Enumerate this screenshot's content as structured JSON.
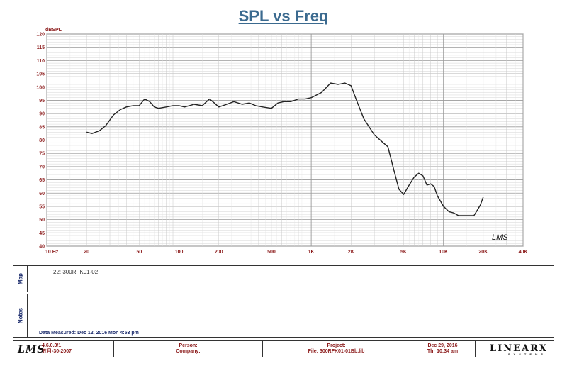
{
  "chart_data": {
    "type": "line",
    "title": "SPL vs Freq",
    "ylabel": "dBSPL",
    "xscale": "log",
    "xlim": [
      10,
      40000
    ],
    "ylim": [
      40,
      120
    ],
    "grid": true,
    "y_ticks": [
      "40",
      "45",
      "50",
      "55",
      "60",
      "65",
      "70",
      "75",
      "80",
      "85",
      "90",
      "95",
      "100",
      "105",
      "110",
      "115",
      "120"
    ],
    "x_ticks": [
      {
        "value": 10,
        "label": "10  Hz"
      },
      {
        "value": 20,
        "label": "20"
      },
      {
        "value": 50,
        "label": "50"
      },
      {
        "value": 100,
        "label": "100"
      },
      {
        "value": 200,
        "label": "200"
      },
      {
        "value": 500,
        "label": "500"
      },
      {
        "value": 1000,
        "label": "1K"
      },
      {
        "value": 2000,
        "label": "2K"
      },
      {
        "value": 5000,
        "label": "5K"
      },
      {
        "value": 10000,
        "label": "10K"
      },
      {
        "value": 20000,
        "label": "20K"
      },
      {
        "value": 40000,
        "label": "40K"
      }
    ],
    "series": [
      {
        "name": "22: 300RFK01-02",
        "color": "#222222",
        "x": [
          20,
          22,
          25,
          28,
          32,
          36,
          40,
          45,
          50,
          55,
          60,
          65,
          70,
          80,
          90,
          100,
          110,
          120,
          130,
          150,
          170,
          185,
          200,
          230,
          260,
          300,
          340,
          380,
          430,
          500,
          560,
          620,
          700,
          800,
          900,
          1000,
          1200,
          1400,
          1600,
          1800,
          2000,
          2200,
          2500,
          3000,
          3500,
          3800,
          4200,
          4600,
          5000,
          5500,
          6000,
          6500,
          7000,
          7500,
          8000,
          8500,
          9000,
          10000,
          11000,
          12000,
          13000,
          15000,
          17000,
          18000,
          19000,
          20000
        ],
        "y": [
          83,
          82.5,
          83.5,
          85.5,
          89.5,
          91.5,
          92.5,
          93,
          93,
          95.5,
          94.5,
          92.5,
          92,
          92.5,
          93,
          93,
          92.5,
          93,
          93.5,
          93,
          95.5,
          94,
          92.5,
          93.5,
          94.5,
          93.5,
          94,
          93,
          92.5,
          92,
          94,
          94.5,
          94.5,
          95.5,
          95.5,
          96,
          98,
          101.5,
          101,
          101.5,
          100.5,
          95,
          88,
          82,
          79,
          77.5,
          69,
          61.5,
          59.5,
          63,
          66,
          67.5,
          66.5,
          63,
          63.5,
          62.5,
          59,
          55,
          53,
          52.5,
          51.5,
          51.5,
          51.5,
          53.5,
          55.5,
          58.5
        ]
      }
    ],
    "annotations": [
      "LMS"
    ]
  },
  "legend": {
    "entry": "22: 300RFK01-02"
  },
  "panels": {
    "map_label": "Map",
    "notes_label": "Notes",
    "date_measured": "Data Measured: Dec 12, 2016  Mon  4:53 pm"
  },
  "footer": {
    "logo": "LMS",
    "version": "4.6.0.3/1",
    "version_date": "五月-30-2007",
    "person_label": "Person:",
    "company_label": "Company:",
    "project_label": "Project:",
    "file": "File: 300RFK01-01Bb.lib",
    "date": "Dec 29, 2016",
    "time": "Thr 10:34 am",
    "brand": "LINEARX",
    "brand_sub": "SYSTEMS"
  },
  "colors": {
    "title": "#3b6a8f",
    "axis_labels": "#8b1a1a",
    "panel_labels": "#1a2a6b",
    "grid_major": "#9a9a9a",
    "grid_minor": "#c8c8c8",
    "curve": "#222222"
  }
}
